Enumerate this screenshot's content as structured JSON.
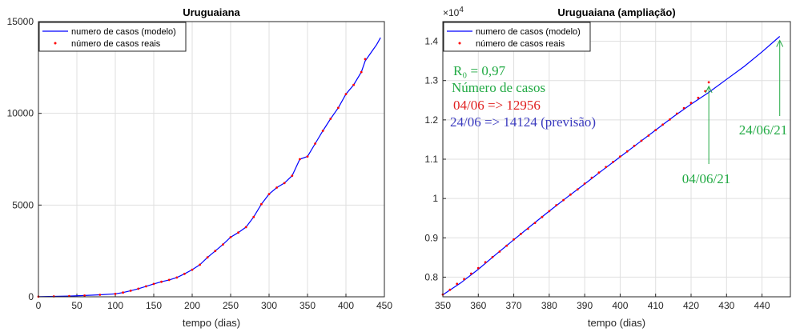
{
  "chart_data": [
    {
      "type": "line",
      "title": "Uruguaiana",
      "xlabel": "tempo (dias)",
      "ylabel": "",
      "xlim": [
        0,
        450
      ],
      "ylim": [
        0,
        15000
      ],
      "xticks": [
        "0",
        "50",
        "100",
        "150",
        "200",
        "250",
        "300",
        "350",
        "400",
        "450"
      ],
      "yticks": [
        "0",
        "5000",
        "10000",
        "15000"
      ],
      "grid": true,
      "legend_position": "top-left",
      "legend": [
        "numero de casos (modelo)",
        "número de casos reais"
      ],
      "series": [
        {
          "name": "numero de casos (modelo)",
          "style": "line",
          "color": "#0000ff",
          "x": [
            0,
            20,
            40,
            60,
            80,
            100,
            110,
            120,
            130,
            140,
            150,
            160,
            170,
            180,
            190,
            200,
            210,
            220,
            230,
            240,
            250,
            260,
            270,
            280,
            290,
            300,
            310,
            320,
            330,
            340,
            350,
            360,
            370,
            380,
            390,
            400,
            410,
            420,
            425,
            430,
            435,
            440,
            445
          ],
          "y": [
            10,
            20,
            40,
            70,
            110,
            160,
            230,
            330,
            440,
            570,
            700,
            820,
            920,
            1050,
            1250,
            1480,
            1750,
            2150,
            2500,
            2850,
            3250,
            3500,
            3800,
            4350,
            5050,
            5600,
            5950,
            6200,
            6600,
            7500,
            7650,
            8350,
            9050,
            9700,
            10300,
            11050,
            11550,
            12250,
            12850,
            13150,
            13450,
            13750,
            14124
          ]
        },
        {
          "name": "número de casos reais",
          "style": "points",
          "color": "#ff0000",
          "x": [
            0,
            20,
            40,
            60,
            80,
            100,
            110,
            120,
            130,
            140,
            150,
            160,
            170,
            180,
            190,
            200,
            210,
            220,
            230,
            240,
            250,
            260,
            270,
            280,
            290,
            300,
            310,
            320,
            330,
            340,
            350,
            360,
            370,
            380,
            390,
            400,
            410,
            420,
            425
          ],
          "y": [
            10,
            20,
            40,
            70,
            110,
            160,
            230,
            330,
            440,
            570,
            700,
            820,
            920,
            1050,
            1250,
            1480,
            1750,
            2150,
            2500,
            2850,
            3250,
            3500,
            3800,
            4350,
            5050,
            5600,
            5950,
            6200,
            6600,
            7500,
            7650,
            8350,
            9050,
            9700,
            10300,
            11050,
            11550,
            12250,
            12956
          ]
        }
      ]
    },
    {
      "type": "line",
      "title": "Uruguaiana (ampliação)",
      "xlabel": "tempo (dias)",
      "ylabel": "",
      "xlim": [
        350,
        448
      ],
      "ylim": [
        7500,
        14500
      ],
      "xticks": [
        "350",
        "360",
        "370",
        "380",
        "390",
        "400",
        "410",
        "420",
        "430",
        "440"
      ],
      "yticks": [
        "0.8",
        "0.9",
        "1",
        "1.1",
        "1.2",
        "1.3",
        "1.4"
      ],
      "y_exponent": "4",
      "grid": true,
      "legend_position": "top-left",
      "legend": [
        "numero de casos (modelo)",
        "número de casos reais"
      ],
      "series": [
        {
          "name": "numero de casos (modelo)",
          "style": "line",
          "color": "#0000ff",
          "x": [
            350,
            355,
            360,
            365,
            370,
            375,
            380,
            385,
            390,
            395,
            400,
            405,
            410,
            415,
            420,
            425,
            430,
            435,
            440,
            445
          ],
          "y": [
            7550,
            7850,
            8200,
            8580,
            8950,
            9320,
            9680,
            10030,
            10370,
            10720,
            11060,
            11400,
            11740,
            12080,
            12400,
            12700,
            13030,
            13360,
            13730,
            14124
          ]
        },
        {
          "name": "número de casos reais",
          "style": "points",
          "color": "#ff0000",
          "x": [
            350,
            352,
            354,
            356,
            358,
            360,
            362,
            364,
            366,
            368,
            370,
            372,
            374,
            376,
            378,
            380,
            382,
            384,
            386,
            388,
            390,
            392,
            394,
            396,
            398,
            400,
            402,
            404,
            406,
            408,
            410,
            412,
            414,
            416,
            418,
            420,
            422,
            424,
            425
          ],
          "y": [
            7560,
            7680,
            7830,
            7950,
            8090,
            8230,
            8380,
            8510,
            8650,
            8800,
            8960,
            9100,
            9230,
            9380,
            9530,
            9680,
            9830,
            9960,
            10100,
            10230,
            10380,
            10530,
            10660,
            10800,
            10930,
            11070,
            11200,
            11340,
            11470,
            11600,
            11740,
            11880,
            12010,
            12160,
            12300,
            12430,
            12560,
            12730,
            12956
          ]
        }
      ],
      "annotations": [
        {
          "text": "R₀ = 0,97",
          "color": "#22aa44"
        },
        {
          "text": "Número de casos",
          "color": "#22aa44"
        },
        {
          "text": "04/06 => 12956",
          "color": "#e02020"
        },
        {
          "text": "24/06 => 14124 (previsão)",
          "color": "#3b3bbf"
        },
        {
          "text": "04/06/21",
          "color": "#22aa44",
          "arrow_to": [
            425,
            12956
          ]
        },
        {
          "text": "24/06/21",
          "color": "#22aa44",
          "arrow_to": [
            445,
            14124
          ]
        }
      ]
    }
  ]
}
